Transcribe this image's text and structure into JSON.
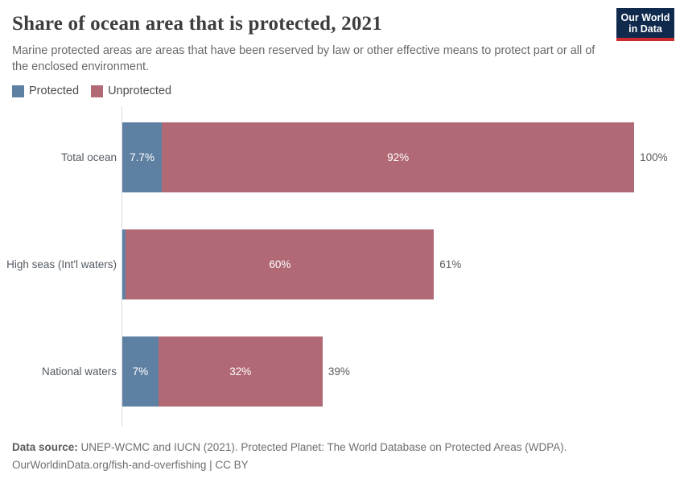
{
  "header": {
    "title": "Share of ocean area that is protected, 2021",
    "subtitle": "Marine protected areas are areas that have been reserved by law or other effective means to protect part or all of the enclosed environment.",
    "logo": {
      "line1": "Our World",
      "line2": "in Data"
    }
  },
  "chart_data": {
    "type": "bar",
    "orientation": "horizontal",
    "stacked": true,
    "unit": "%",
    "xlim": [
      0,
      100
    ],
    "grid": false,
    "legend_position": "top-left",
    "categories": [
      "Total ocean",
      "High seas (Int'l waters)",
      "National waters"
    ],
    "series": [
      {
        "name": "Protected",
        "color": "#5e81a3",
        "values": [
          7.7,
          0.7,
          7
        ]
      },
      {
        "name": "Unprotected",
        "color": "#b16a75",
        "values": [
          92,
          60,
          32
        ]
      }
    ],
    "rows": [
      {
        "label": "Total ocean",
        "protected": {
          "value": 7.7,
          "label": "7.7%"
        },
        "unprotected": {
          "value": 92,
          "label": "92%"
        },
        "total_label": "100%"
      },
      {
        "label": "High seas (Int'l waters)",
        "protected": {
          "value": 0.7,
          "label": ""
        },
        "unprotected": {
          "value": 60,
          "label": "60%"
        },
        "total_label": "61%"
      },
      {
        "label": "National waters",
        "protected": {
          "value": 7,
          "label": "7%"
        },
        "unprotected": {
          "value": 32,
          "label": "32%"
        },
        "total_label": "39%"
      }
    ]
  },
  "footer": {
    "source_label": "Data source:",
    "source_text": " UNEP-WCMC and IUCN (2021). Protected Planet: The World Database on Protected Areas (WDPA).",
    "citation": "OurWorldinData.org/fish-and-overfishing | CC BY"
  },
  "colors": {
    "protected": "#5e81a3",
    "unprotected": "#b16a75",
    "logo_navy": "#102a4e",
    "logo_red": "#cc2b2e",
    "axis_line": "#dddde2",
    "title_text": "#3d3d3d",
    "subtitle_text": "#696969"
  }
}
